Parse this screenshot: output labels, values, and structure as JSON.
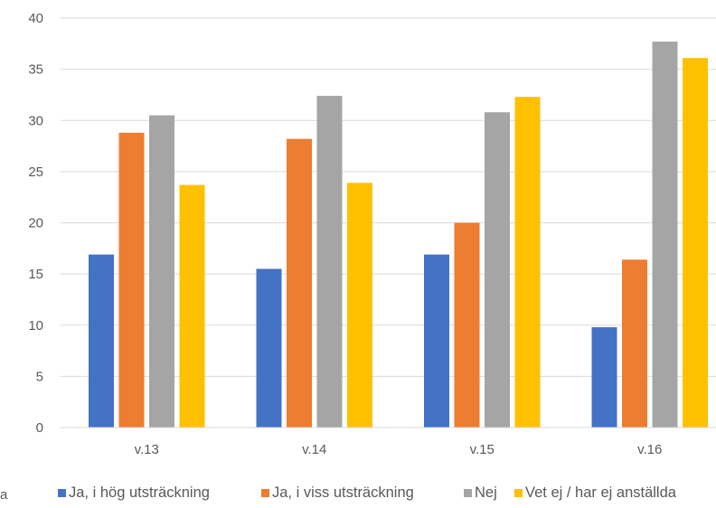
{
  "chart_data": {
    "type": "bar",
    "categories": [
      "v.13",
      "v.14",
      "v.15",
      "v.16"
    ],
    "series": [
      {
        "name": "Ja, i hög utsträckning",
        "color": "#4472C4",
        "values": [
          16.9,
          15.5,
          16.9,
          9.8
        ]
      },
      {
        "name": "Ja, i viss utsträckning",
        "color": "#ED7D31",
        "values": [
          28.8,
          28.2,
          20.0,
          16.4
        ]
      },
      {
        "name": "Nej",
        "color": "#A5A5A5",
        "values": [
          30.5,
          32.4,
          30.8,
          37.7
        ]
      },
      {
        "name": "Vet ej / har ej anställda",
        "color": "#FFC000",
        "values": [
          23.7,
          23.9,
          32.3,
          36.1
        ]
      }
    ],
    "y_ticks": [
      "0",
      "5",
      "10",
      "15",
      "20",
      "25",
      "30",
      "35",
      "40"
    ],
    "ylim": [
      0,
      40
    ],
    "grid": true,
    "legend_position": "bottom",
    "legend_overflow_text": "a"
  }
}
